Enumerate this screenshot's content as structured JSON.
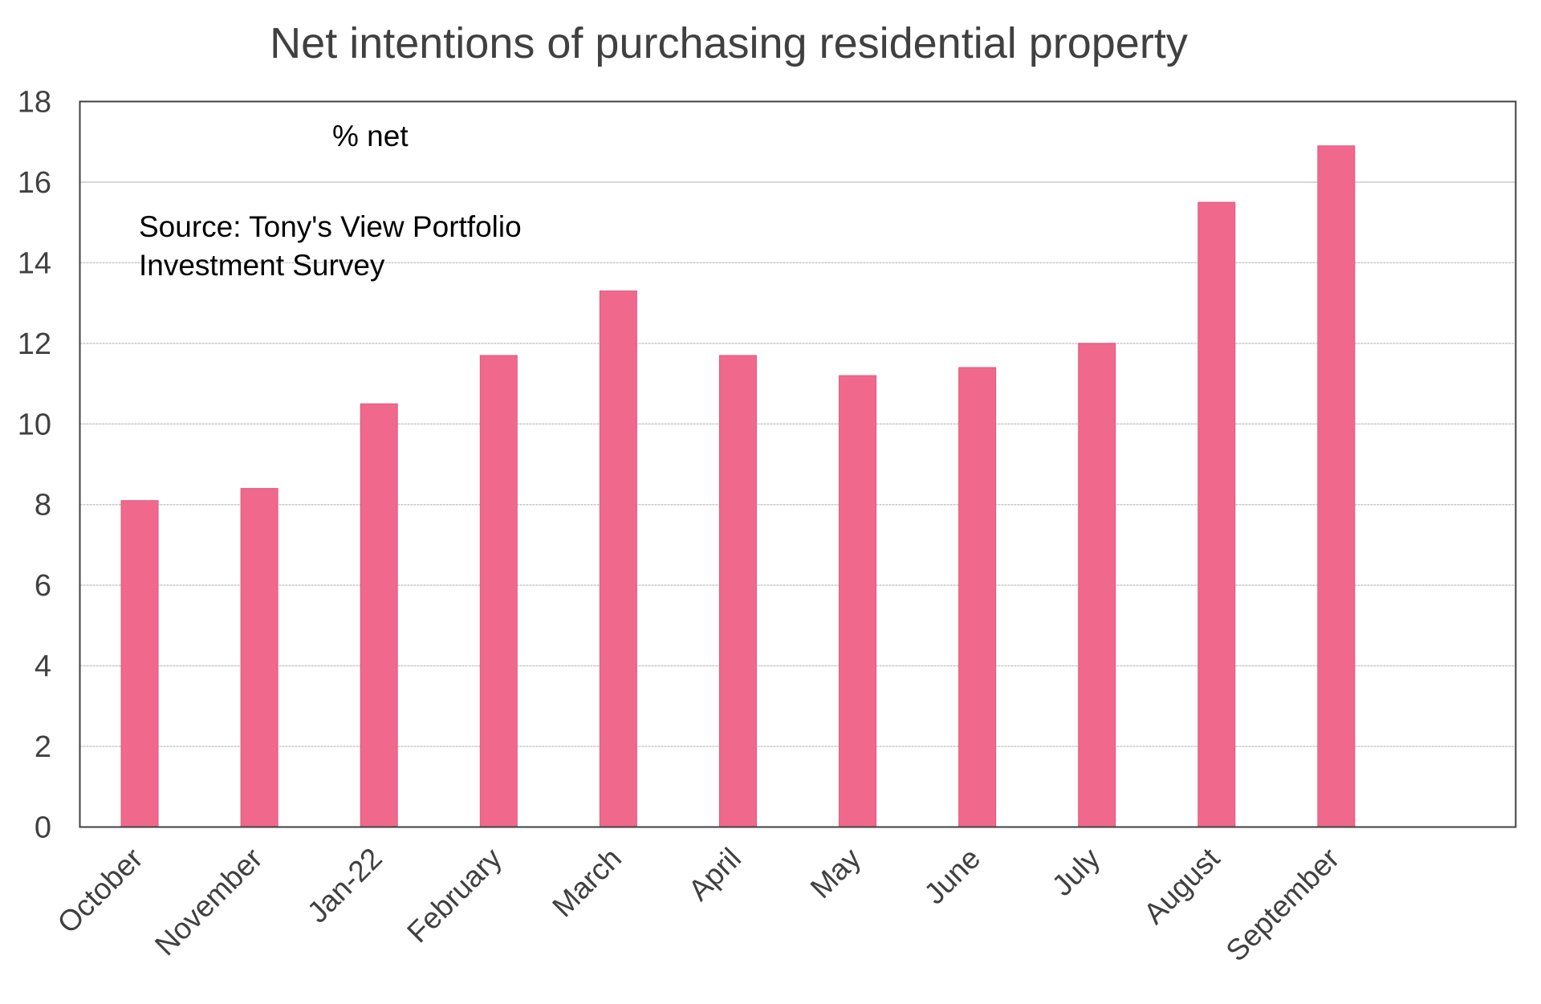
{
  "chart_data": {
    "type": "bar",
    "title": "Net intentions of purchasing residential property",
    "xlabel": "",
    "ylabel": "",
    "unit_label": "% net",
    "source_note": [
      "Source: Tony's View Portfolio",
      "Investment Survey"
    ],
    "categories": [
      "October",
      "November",
      "Jan-22",
      "February",
      "March",
      "April",
      "May",
      "June",
      "July",
      "August",
      "September"
    ],
    "series": [
      {
        "name": "Net intentions",
        "values": [
          8.1,
          8.4,
          10.5,
          11.7,
          13.3,
          11.7,
          11.2,
          11.4,
          12.0,
          15.5,
          16.9
        ]
      }
    ],
    "ylim": [
      0,
      18
    ],
    "yticks": [
      "0",
      "2",
      "4",
      "6",
      "8",
      "10",
      "12",
      "14",
      "16",
      "18"
    ],
    "category_slots": 12,
    "grid": true,
    "legend": "none",
    "colors": {
      "bar": "#f0698c",
      "bar_edge": "#e0577c",
      "gridline": "#c8c8c8",
      "frame": "#404040",
      "text": "#404040"
    }
  }
}
